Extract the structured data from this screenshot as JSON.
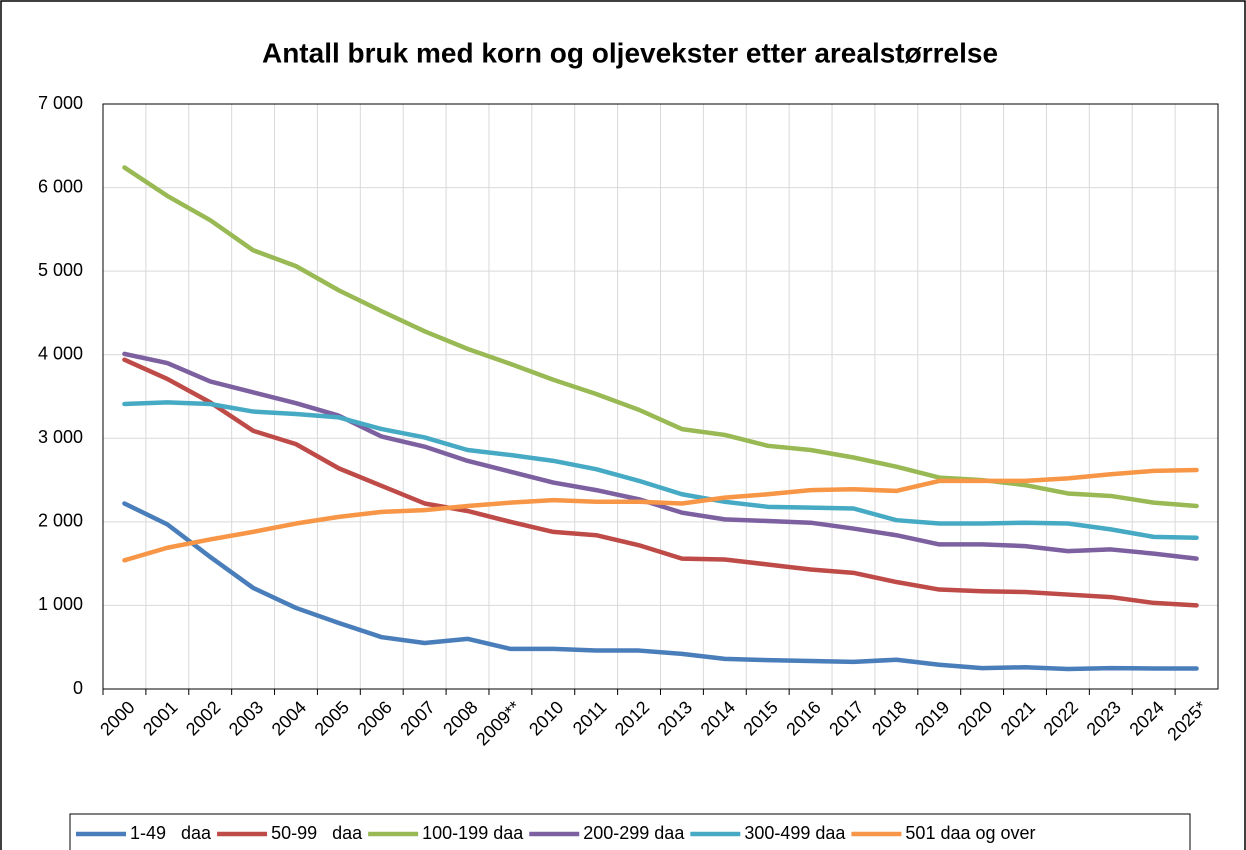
{
  "chart_data": {
    "type": "line",
    "title": "Antall bruk med korn og oljevekster etter arealstørrelse",
    "categories": [
      "2000",
      "2001",
      "2002",
      "2003",
      "2004",
      "2005",
      "2006",
      "2007",
      "2008",
      "2009**",
      "2010",
      "2011",
      "2012",
      "2013",
      "2014",
      "2015",
      "2016",
      "2017",
      "2018",
      "2019",
      "2020",
      "2021",
      "2022",
      "2023",
      "2024",
      "2025*"
    ],
    "series": [
      {
        "name": "1-49   daa",
        "color": "#4a7ebb",
        "values": [
          2220,
          1970,
          1580,
          1210,
          970,
          790,
          620,
          550,
          600,
          480,
          480,
          460,
          460,
          420,
          360,
          345,
          335,
          325,
          350,
          290,
          250,
          260,
          240,
          250,
          245,
          245
        ]
      },
      {
        "name": "50-99   daa",
        "color": "#be4b48",
        "values": [
          3940,
          3710,
          3430,
          3090,
          2930,
          2640,
          2430,
          2220,
          2130,
          2000,
          1880,
          1840,
          1720,
          1560,
          1550,
          1490,
          1430,
          1390,
          1280,
          1190,
          1170,
          1160,
          1130,
          1100,
          1030,
          1000
        ]
      },
      {
        "name": "100-199 daa",
        "color": "#98b954",
        "values": [
          6240,
          5900,
          5610,
          5250,
          5060,
          4770,
          4520,
          4280,
          4070,
          3890,
          3700,
          3530,
          3340,
          3110,
          3040,
          2910,
          2860,
          2770,
          2660,
          2530,
          2500,
          2440,
          2340,
          2310,
          2230,
          2190
        ]
      },
      {
        "name": "200-299 daa",
        "color": "#7d60a0",
        "values": [
          4010,
          3900,
          3680,
          3550,
          3420,
          3270,
          3020,
          2900,
          2730,
          2600,
          2470,
          2380,
          2270,
          2110,
          2030,
          2010,
          1990,
          1920,
          1840,
          1730,
          1730,
          1710,
          1650,
          1670,
          1620,
          1560
        ]
      },
      {
        "name": "300-499 daa",
        "color": "#46aac5",
        "values": [
          3410,
          3430,
          3410,
          3320,
          3290,
          3250,
          3110,
          3010,
          2860,
          2800,
          2730,
          2630,
          2490,
          2330,
          2240,
          2180,
          2170,
          2160,
          2020,
          1980,
          1980,
          1990,
          1980,
          1910,
          1820,
          1810
        ]
      },
      {
        "name": "501 daa og over",
        "color": "#f79646",
        "values": [
          1540,
          1690,
          1790,
          1880,
          1980,
          2060,
          2120,
          2140,
          2190,
          2230,
          2260,
          2240,
          2240,
          2220,
          2290,
          2330,
          2380,
          2390,
          2370,
          2490,
          2490,
          2490,
          2520,
          2570,
          2610,
          2620
        ]
      }
    ],
    "ylim": [
      0,
      7000
    ],
    "yticks": [
      {
        "value": 0,
        "label": "0"
      },
      {
        "value": 1000,
        "label": "1 000"
      },
      {
        "value": 2000,
        "label": "2 000"
      },
      {
        "value": 3000,
        "label": "3 000"
      },
      {
        "value": 4000,
        "label": "4 000"
      },
      {
        "value": 5000,
        "label": "5 000"
      },
      {
        "value": 6000,
        "label": "6 000"
      },
      {
        "value": 7000,
        "label": "7 000"
      }
    ],
    "grid": true,
    "legend": "bottom"
  }
}
